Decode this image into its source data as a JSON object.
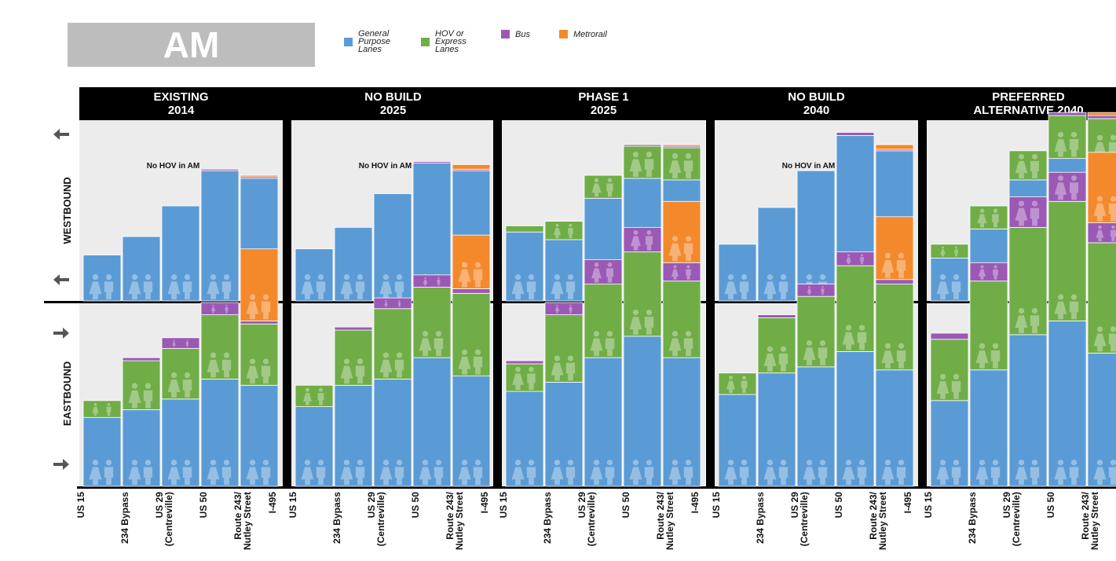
{
  "title": "AM",
  "legend": [
    {
      "label": "General\nPurpose\nLanes",
      "color": "#5b9bd5"
    },
    {
      "label": "HOV or\nExpress\nLanes",
      "color": "#70ad47"
    },
    {
      "label": "Bus",
      "color": "#9b59b6"
    },
    {
      "label": "Metrorail",
      "color": "#f4892b"
    }
  ],
  "row_labels": [
    "WESTBOUND",
    "EASTBOUND"
  ],
  "chart_data": {
    "type": "bar",
    "stacked": true,
    "description_series": [
      "General Purpose Lanes",
      "HOV or Express Lanes",
      "Bus",
      "Metrorail"
    ],
    "x_tick_labels": [
      "US 15",
      "234 Bypass",
      "US 29\n(Centreville)",
      "US 50",
      "Route 243/\nNutley Street",
      "I-495"
    ],
    "segments": [
      "US 15 - 234 Bypass",
      "234 Bypass - US 29",
      "US 29 - US 50",
      "US 50 - Route 243",
      "Route 243 - I-495"
    ],
    "panels": [
      {
        "title": "EXISTING\n2014",
        "annotation_westbound": "No HOV in AM",
        "westbound": {
          "general": [
            30,
            42,
            62,
            85,
            80
          ],
          "hov": [
            0,
            0,
            0,
            0,
            0
          ],
          "bus": [
            0,
            0,
            0,
            1,
            1
          ],
          "metrorail": [
            0,
            0,
            0,
            0,
            1
          ]
        },
        "eastbound": {
          "general": [
            45,
            50,
            57,
            70,
            66
          ],
          "hov": [
            11,
            32,
            33,
            42,
            40
          ],
          "bus": [
            0,
            2,
            7,
            8,
            2
          ],
          "metrorail": [
            0,
            0,
            0,
            0,
            47
          ]
        }
      },
      {
        "title": "NO BUILD\n2025",
        "annotation_westbound": "No HOV in AM",
        "westbound": {
          "general": [
            34,
            48,
            70,
            90,
            85
          ],
          "hov": [
            0,
            0,
            0,
            0,
            0
          ],
          "bus": [
            0,
            0,
            0,
            1,
            1
          ],
          "metrorail": [
            0,
            0,
            0,
            0,
            3
          ]
        },
        "eastbound": {
          "general": [
            52,
            66,
            70,
            84,
            72
          ],
          "hov": [
            14,
            36,
            46,
            46,
            54
          ],
          "bus": [
            0,
            2,
            7,
            8,
            3
          ],
          "metrorail": [
            0,
            0,
            0,
            0,
            35
          ]
        }
      },
      {
        "title": "PHASE 1\n2025",
        "annotation_westbound": "",
        "westbound": {
          "general": [
            45,
            40,
            67,
            80,
            79
          ],
          "hov": [
            4,
            12,
            15,
            21,
            21
          ],
          "bus": [
            0,
            0,
            0,
            1,
            1
          ],
          "metrorail": [
            0,
            0,
            0,
            0,
            1
          ]
        },
        "eastbound": {
          "general": [
            62,
            68,
            84,
            98,
            84
          ],
          "hov": [
            18,
            44,
            48,
            55,
            50
          ],
          "bus": [
            2,
            8,
            16,
            16,
            12
          ],
          "metrorail": [
            0,
            0,
            0,
            0,
            40
          ]
        }
      },
      {
        "title": "NO BUILD\n2040",
        "annotation_westbound": "No HOV in AM",
        "westbound": {
          "general": [
            37,
            61,
            85,
            108,
            98
          ],
          "hov": [
            0,
            0,
            0,
            0,
            0
          ],
          "bus": [
            0,
            0,
            0,
            2,
            1
          ],
          "metrorail": [
            0,
            0,
            0,
            0,
            3
          ]
        },
        "eastbound": {
          "general": [
            60,
            74,
            78,
            88,
            76
          ],
          "hov": [
            14,
            36,
            46,
            56,
            56
          ],
          "bus": [
            0,
            2,
            8,
            9,
            3
          ],
          "metrorail": [
            0,
            0,
            0,
            0,
            41
          ]
        }
      },
      {
        "title": "PREFERRED\nALTERNATIVE 2040",
        "annotation_westbound": "",
        "westbound": {
          "general": [
            28,
            47,
            79,
            93,
            91
          ],
          "hov": [
            9,
            15,
            19,
            28,
            28
          ],
          "bus": [
            0,
            0,
            0,
            2,
            2
          ],
          "metrorail": [
            0,
            0,
            0,
            0,
            2
          ]
        },
        "eastbound": {
          "general": [
            56,
            76,
            99,
            108,
            87
          ],
          "hov": [
            40,
            58,
            70,
            78,
            72
          ],
          "bus": [
            4,
            12,
            20,
            19,
            13
          ],
          "metrorail": [
            0,
            0,
            0,
            0,
            46
          ]
        }
      }
    ]
  }
}
